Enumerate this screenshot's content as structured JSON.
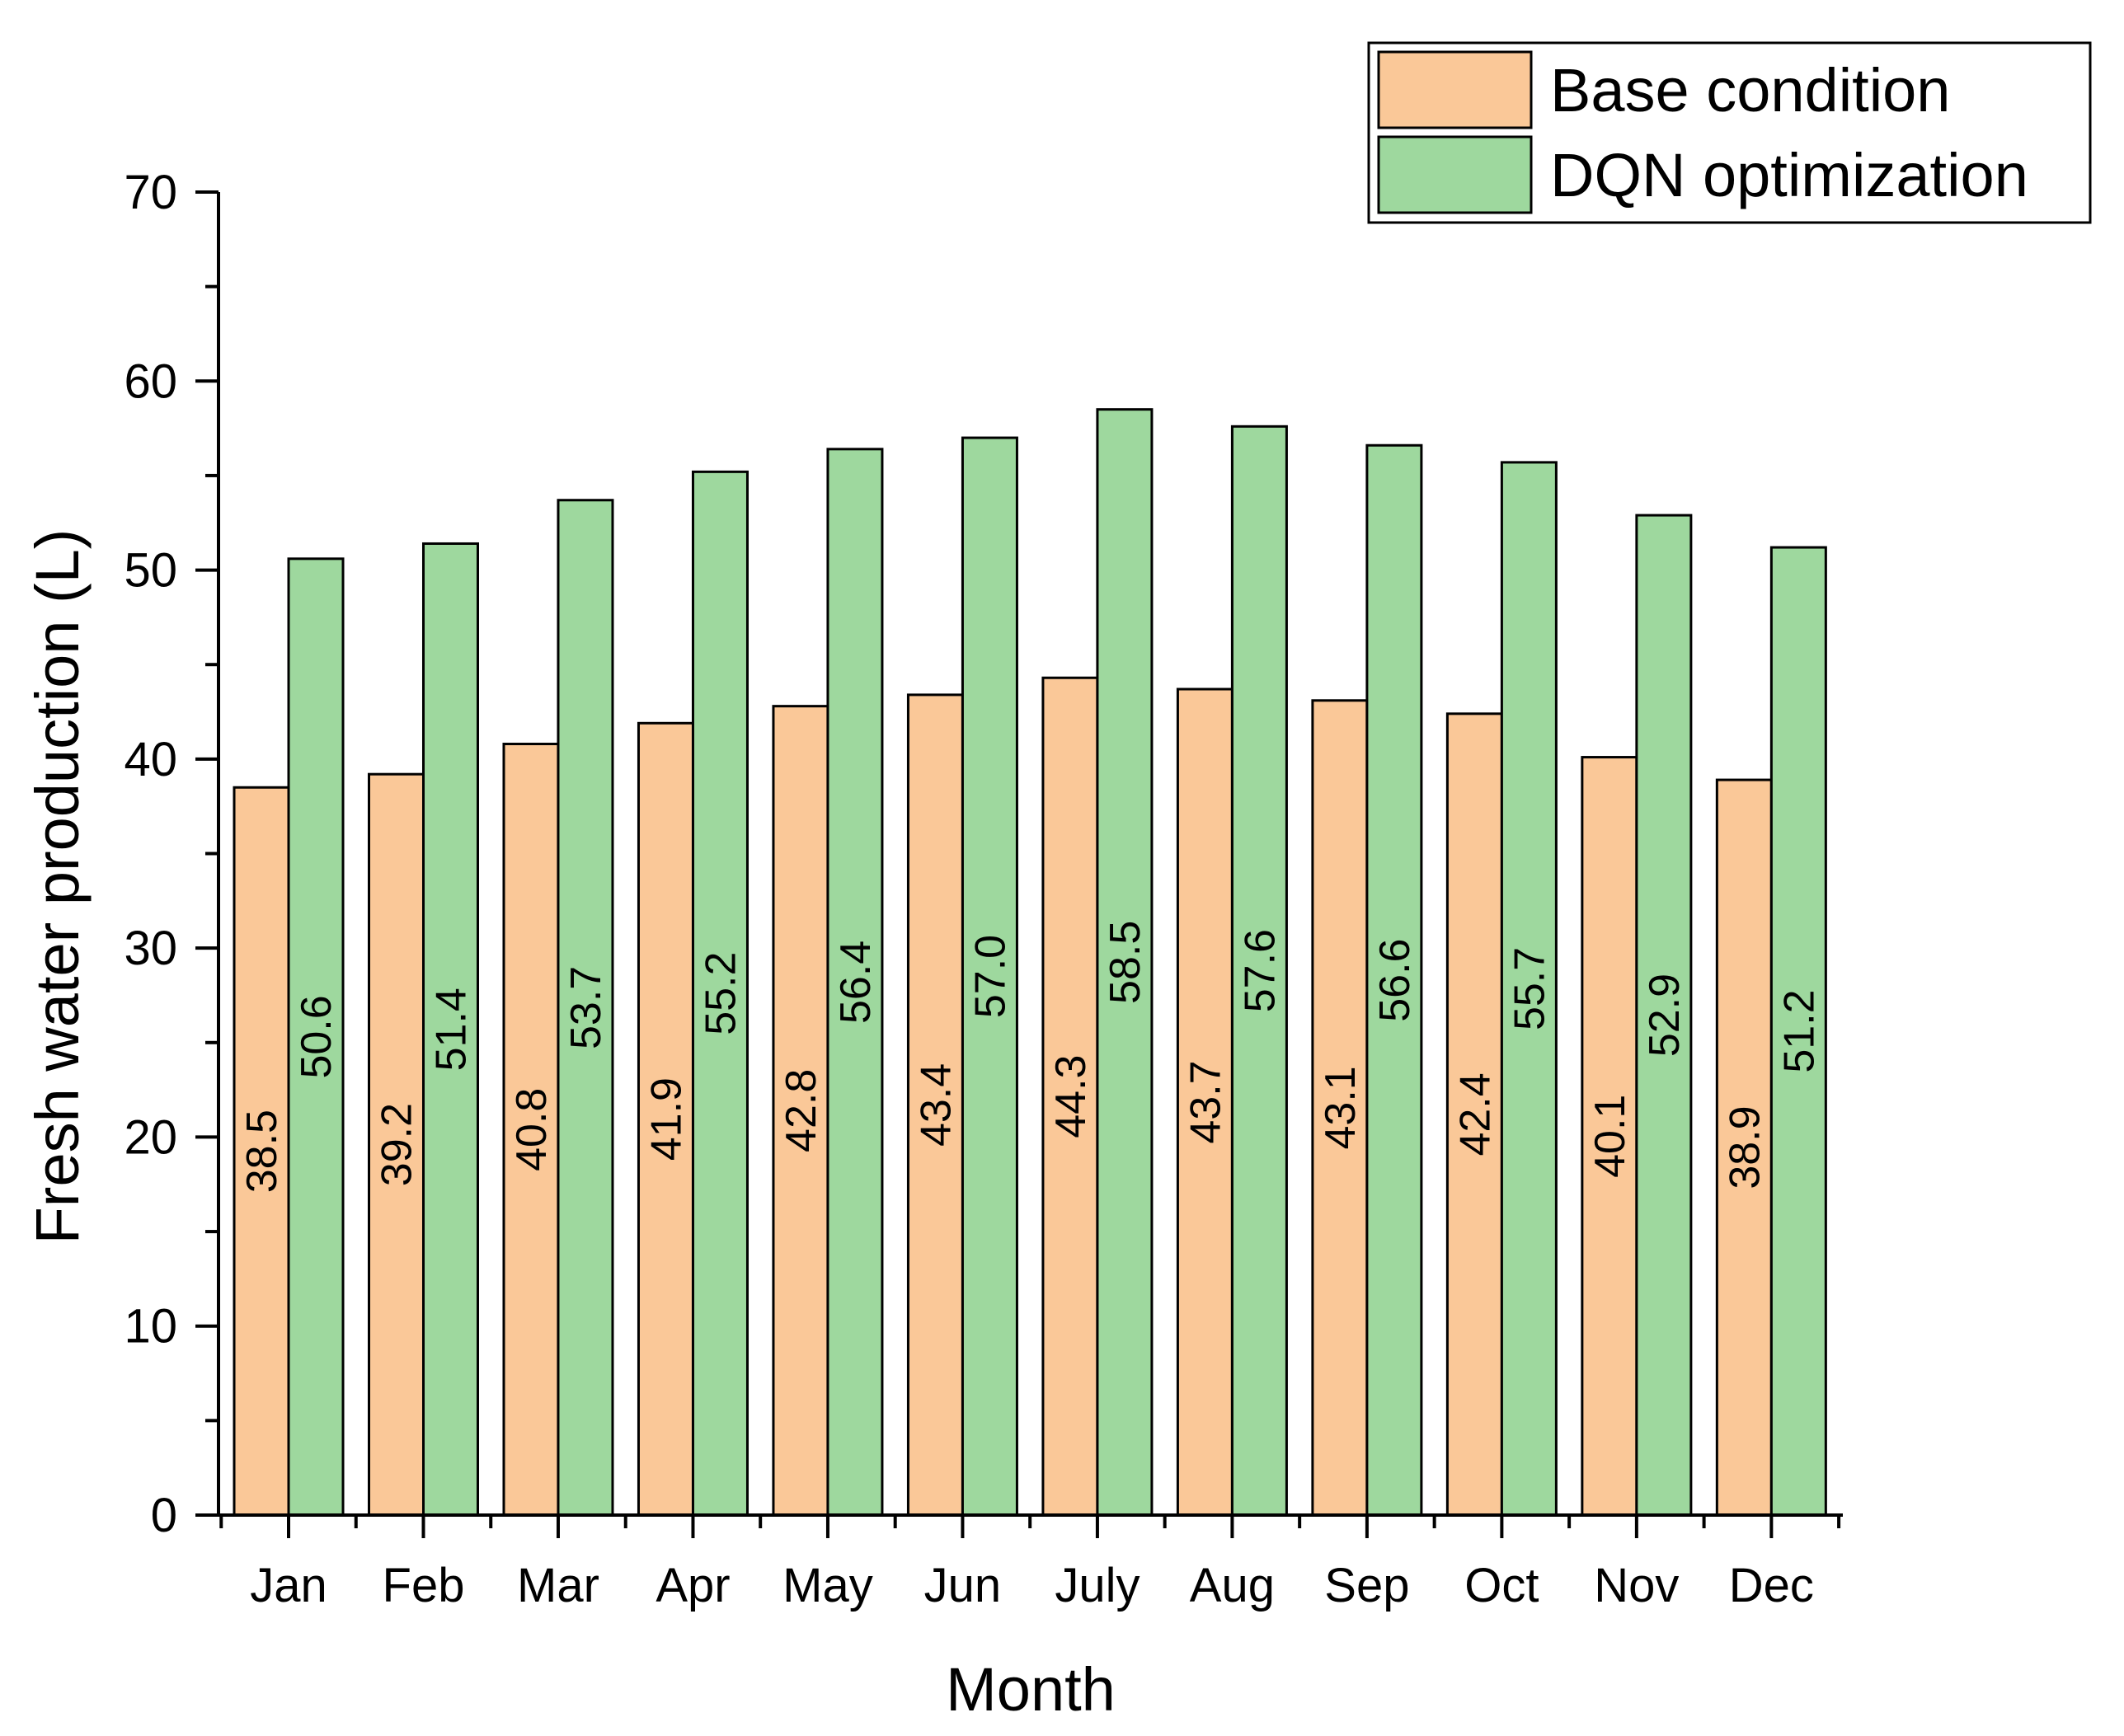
{
  "chart_data": {
    "type": "bar",
    "title": "",
    "xlabel": "Month",
    "ylabel": "Fresh water production (L)",
    "ylim": [
      0,
      70
    ],
    "yticks": [
      0,
      10,
      20,
      30,
      40,
      50,
      60,
      70
    ],
    "grid": false,
    "legend_position": "top-right",
    "categories": [
      "Jan",
      "Feb",
      "Mar",
      "Apr",
      "May",
      "Jun",
      "July",
      "Aug",
      "Sep",
      "Oct",
      "Nov",
      "Dec"
    ],
    "series": [
      {
        "name": "Base condition",
        "color": "#FAC898",
        "values": [
          38.5,
          39.2,
          40.8,
          41.9,
          42.8,
          43.4,
          44.3,
          43.7,
          43.1,
          42.4,
          40.1,
          38.9
        ],
        "labels": [
          "38.5",
          "39.2",
          "40.8",
          "41.9",
          "42.8",
          "43.4",
          "44.3",
          "43.7",
          "43.1",
          "42.4",
          "40.1",
          "38.9"
        ]
      },
      {
        "name": "DQN optimization",
        "color": "#9ED89E",
        "values": [
          50.6,
          51.4,
          53.7,
          55.2,
          56.4,
          57.0,
          58.5,
          57.6,
          56.6,
          55.7,
          52.9,
          51.2
        ],
        "labels": [
          "50.6",
          "51.4",
          "53.7",
          "55.2",
          "56.4",
          "57.0",
          "58.5",
          "57.6",
          "56.6",
          "55.7",
          "52.9",
          "51.2"
        ]
      }
    ]
  }
}
